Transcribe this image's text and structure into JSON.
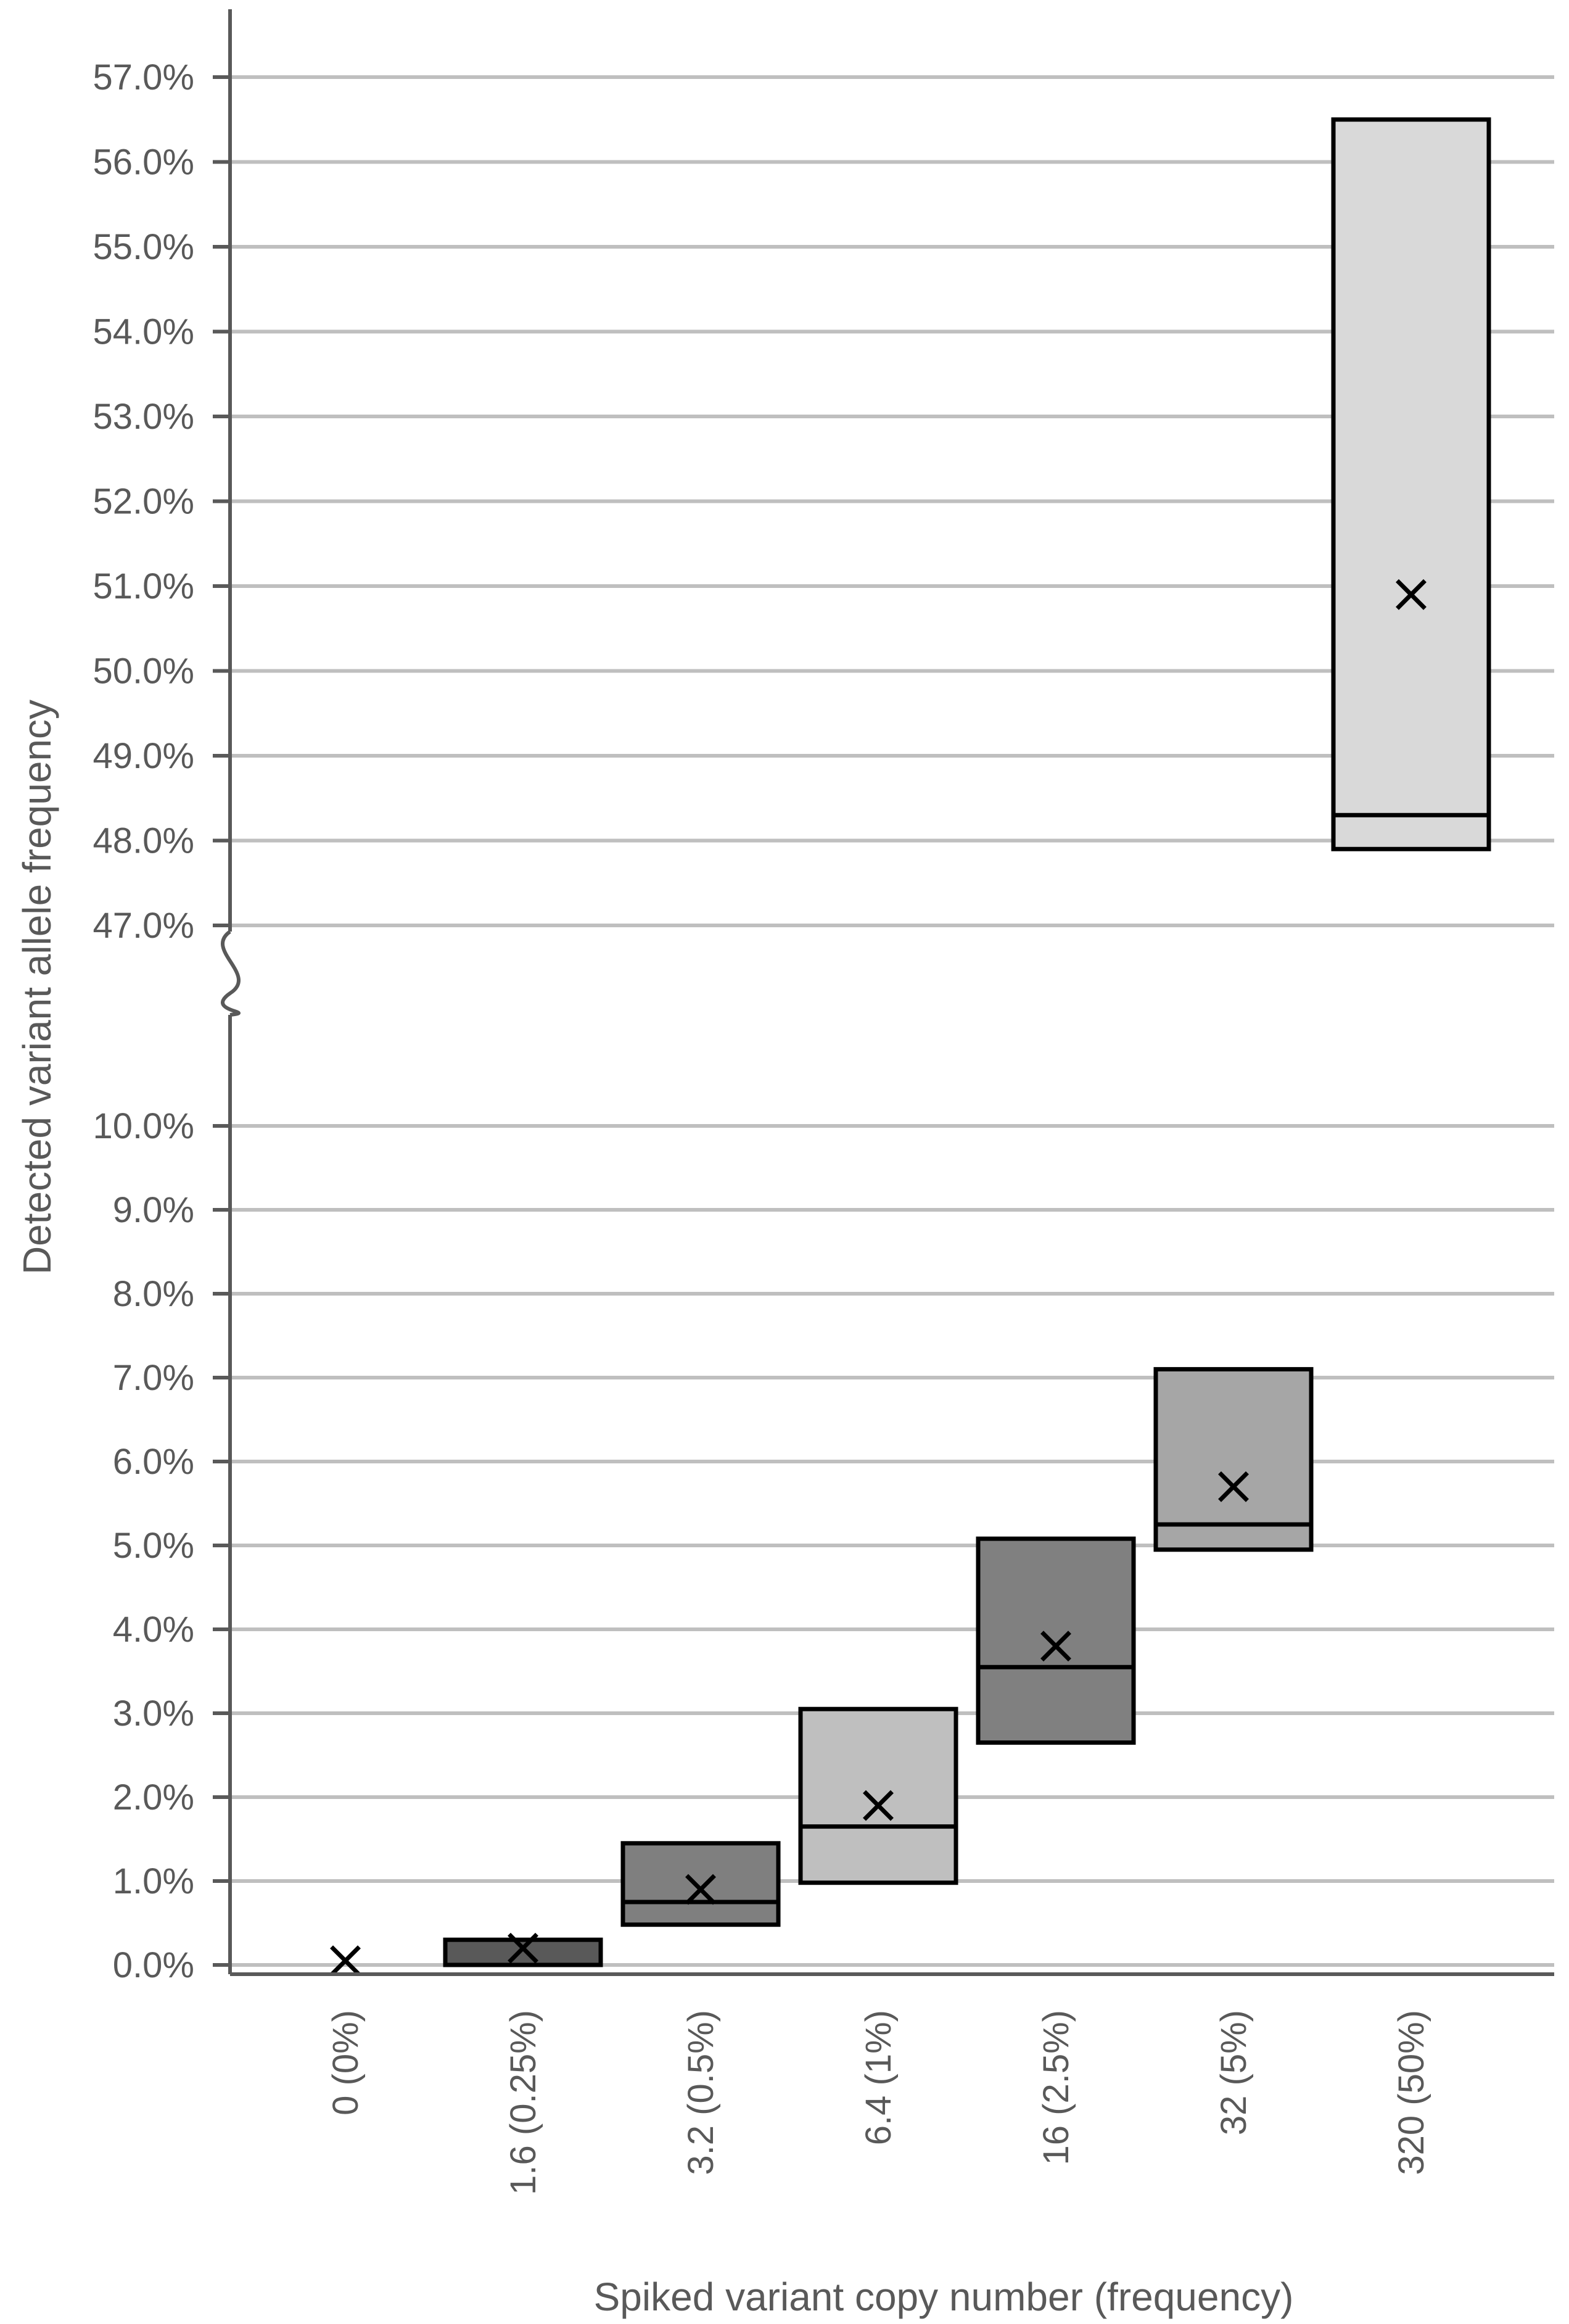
{
  "chart_data": {
    "type": "box",
    "xlabel": "Spiked variant copy number (frequency)",
    "ylabel": "Detected variant allele frequency",
    "categories": [
      "0 (0%)",
      "1.6 (0.25%)",
      "3.2 (0.5%)",
      "6.4 (1%)",
      "16 (2.5%)",
      "32 (5%)",
      "320 (50%)"
    ],
    "y_axis_break": {
      "from": 10.0,
      "to": 47.0
    },
    "yticks_lower": [
      "0.0%",
      "1.0%",
      "2.0%",
      "3.0%",
      "4.0%",
      "5.0%",
      "6.0%",
      "7.0%",
      "8.0%",
      "9.0%",
      "10.0%"
    ],
    "yticks_upper": [
      "47.0%",
      "48.0%",
      "49.0%",
      "50.0%",
      "51.0%",
      "52.0%",
      "53.0%",
      "54.0%",
      "55.0%",
      "56.0%",
      "57.0%"
    ],
    "series": [
      {
        "category": "0 (0%)",
        "q1": 0.0,
        "median": 0.0,
        "q3": 0.0,
        "mean": 0.05,
        "color": "#595959"
      },
      {
        "category": "1.6 (0.25%)",
        "q1": 0.0,
        "median": 0.0,
        "q3": 0.3,
        "mean": 0.2,
        "color": "#595959"
      },
      {
        "category": "3.2 (0.5%)",
        "q1": 0.48,
        "median": 0.75,
        "q3": 1.45,
        "mean": 0.9,
        "color": "#7f7f7f"
      },
      {
        "category": "6.4 (1%)",
        "q1": 0.98,
        "median": 1.65,
        "q3": 3.05,
        "mean": 1.9,
        "color": "#bfbfbf"
      },
      {
        "category": "16 (2.5%)",
        "q1": 2.65,
        "median": 3.55,
        "q3": 5.08,
        "mean": 3.8,
        "color": "#808080"
      },
      {
        "category": "32 (5%)",
        "q1": 4.95,
        "median": 5.25,
        "q3": 7.1,
        "mean": 5.7,
        "color": "#a6a6a6"
      },
      {
        "category": "320 (50%)",
        "q1": 47.9,
        "median": 48.3,
        "q3": 56.5,
        "mean": 50.9,
        "color": "#d9d9d9"
      }
    ]
  }
}
